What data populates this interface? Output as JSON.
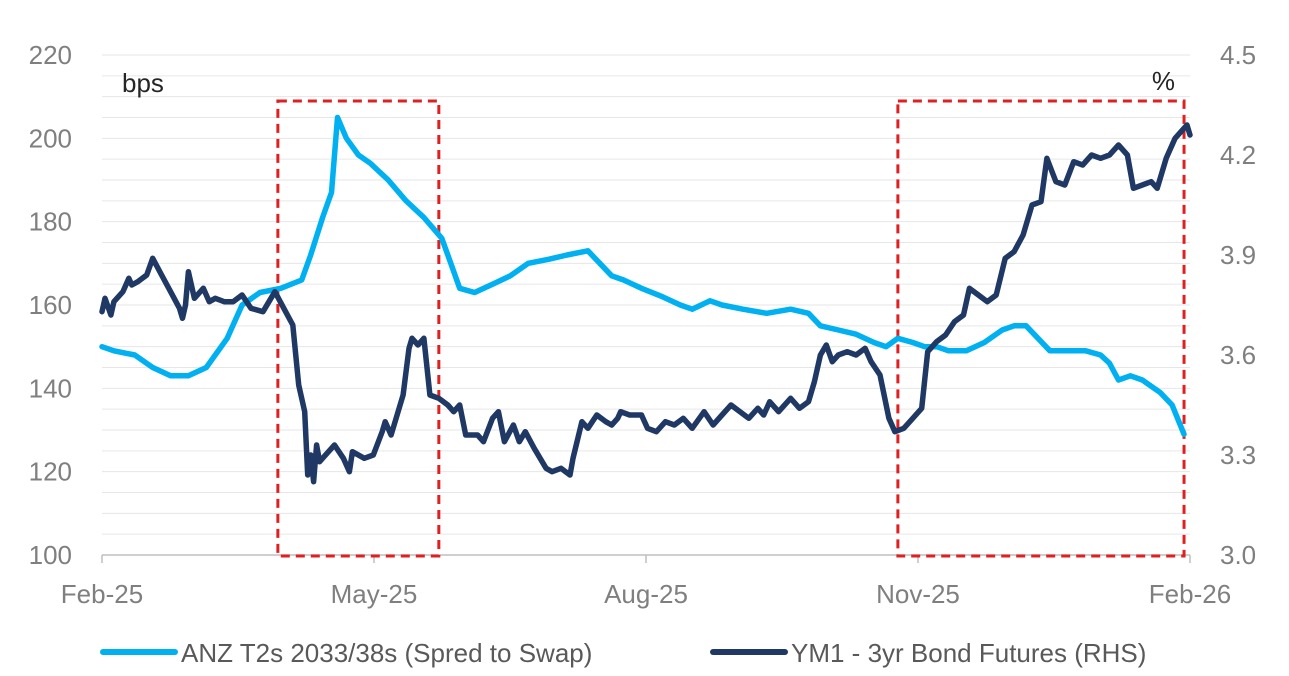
{
  "chart_data": {
    "type": "line",
    "title": "",
    "left_axis": {
      "unit_label": "bps",
      "min": 100,
      "max": 220,
      "ticks": [
        100,
        120,
        140,
        160,
        180,
        200,
        220
      ]
    },
    "right_axis": {
      "unit_label": "%",
      "min": 3.0,
      "max": 4.5,
      "ticks": [
        "3.0",
        "3.3",
        "3.6",
        "3.9",
        "4.2",
        "4.5"
      ]
    },
    "x_axis": {
      "ticks": [
        "Feb-25",
        "May-25",
        "Aug-25",
        "Nov-25",
        "Feb-26"
      ]
    },
    "x_range": [
      "2025-02-01",
      "2026-02-01"
    ],
    "minor_gridlines": true,
    "legend_position": "bottom",
    "colors": {
      "ANZ": "#00b0f0",
      "YM1": "#1f3864",
      "highlight": "#e02020"
    },
    "highlight_boxes": [
      {
        "x_start": "2025-04-01",
        "x_end": "2025-05-25"
      },
      {
        "x_start": "2025-10-26",
        "x_end": "2026-01-30"
      }
    ],
    "series": [
      {
        "name": "ANZ T2s 2033/38s (Spred to Swap)",
        "axis": "left",
        "points": [
          [
            "2025-02-01",
            150
          ],
          [
            "2025-02-05",
            149
          ],
          [
            "2025-02-12",
            148
          ],
          [
            "2025-02-18",
            145
          ],
          [
            "2025-02-24",
            143
          ],
          [
            "2025-03-02",
            143
          ],
          [
            "2025-03-08",
            145
          ],
          [
            "2025-03-15",
            152
          ],
          [
            "2025-03-20",
            160
          ],
          [
            "2025-03-26",
            163
          ],
          [
            "2025-04-02",
            164
          ],
          [
            "2025-04-09",
            166
          ],
          [
            "2025-04-12",
            172
          ],
          [
            "2025-04-16",
            181
          ],
          [
            "2025-04-19",
            187
          ],
          [
            "2025-04-21",
            205
          ],
          [
            "2025-04-24",
            200
          ],
          [
            "2025-04-28",
            196
          ],
          [
            "2025-05-02",
            194
          ],
          [
            "2025-05-08",
            190
          ],
          [
            "2025-05-14",
            185
          ],
          [
            "2025-05-20",
            181
          ],
          [
            "2025-05-26",
            176
          ],
          [
            "2025-05-29",
            170
          ],
          [
            "2025-06-01",
            164
          ],
          [
            "2025-06-06",
            163
          ],
          [
            "2025-06-12",
            165
          ],
          [
            "2025-06-18",
            167
          ],
          [
            "2025-06-24",
            170
          ],
          [
            "2025-07-01",
            171
          ],
          [
            "2025-07-07",
            172
          ],
          [
            "2025-07-14",
            173
          ],
          [
            "2025-07-18",
            170
          ],
          [
            "2025-07-22",
            167
          ],
          [
            "2025-07-26",
            166
          ],
          [
            "2025-08-01",
            164
          ],
          [
            "2025-08-08",
            162
          ],
          [
            "2025-08-14",
            160
          ],
          [
            "2025-08-18",
            159
          ],
          [
            "2025-08-24",
            161
          ],
          [
            "2025-08-28",
            160
          ],
          [
            "2025-09-04",
            159
          ],
          [
            "2025-09-12",
            158
          ],
          [
            "2025-09-20",
            159
          ],
          [
            "2025-09-26",
            158
          ],
          [
            "2025-09-30",
            155
          ],
          [
            "2025-10-06",
            154
          ],
          [
            "2025-10-12",
            153
          ],
          [
            "2025-10-18",
            151
          ],
          [
            "2025-10-22",
            150
          ],
          [
            "2025-10-26",
            152
          ],
          [
            "2025-10-31",
            151
          ],
          [
            "2025-11-04",
            150
          ],
          [
            "2025-11-08",
            150
          ],
          [
            "2025-11-12",
            149
          ],
          [
            "2025-11-18",
            149
          ],
          [
            "2025-11-24",
            151
          ],
          [
            "2025-11-30",
            154
          ],
          [
            "2025-12-04",
            155
          ],
          [
            "2025-12-08",
            155
          ],
          [
            "2025-12-12",
            152
          ],
          [
            "2025-12-16",
            149
          ],
          [
            "2025-12-22",
            149
          ],
          [
            "2025-12-28",
            149
          ],
          [
            "2026-01-02",
            148
          ],
          [
            "2026-01-05",
            146
          ],
          [
            "2026-01-08",
            142
          ],
          [
            "2026-01-12",
            143
          ],
          [
            "2026-01-16",
            142
          ],
          [
            "2026-01-22",
            139
          ],
          [
            "2026-01-26",
            136
          ],
          [
            "2026-01-30",
            129
          ]
        ]
      },
      {
        "name": "YM1 - 3yr Bond Futures (RHS)",
        "axis": "right",
        "points": [
          [
            "2025-02-01",
            3.73
          ],
          [
            "2025-02-02",
            3.77
          ],
          [
            "2025-02-04",
            3.72
          ],
          [
            "2025-02-05",
            3.76
          ],
          [
            "2025-02-08",
            3.79
          ],
          [
            "2025-02-10",
            3.83
          ],
          [
            "2025-02-11",
            3.81
          ],
          [
            "2025-02-13",
            3.82
          ],
          [
            "2025-02-16",
            3.84
          ],
          [
            "2025-02-18",
            3.89
          ],
          [
            "2025-02-21",
            3.84
          ],
          [
            "2025-02-24",
            3.79
          ],
          [
            "2025-02-27",
            3.74
          ],
          [
            "2025-02-28",
            3.71
          ],
          [
            "2025-03-01",
            3.75
          ],
          [
            "2025-03-02",
            3.85
          ],
          [
            "2025-03-04",
            3.77
          ],
          [
            "2025-03-07",
            3.8
          ],
          [
            "2025-03-09",
            3.76
          ],
          [
            "2025-03-11",
            3.77
          ],
          [
            "2025-03-14",
            3.76
          ],
          [
            "2025-03-17",
            3.76
          ],
          [
            "2025-03-20",
            3.78
          ],
          [
            "2025-03-23",
            3.74
          ],
          [
            "2025-03-27",
            3.73
          ],
          [
            "2025-03-31",
            3.79
          ],
          [
            "2025-04-03",
            3.74
          ],
          [
            "2025-04-06",
            3.69
          ],
          [
            "2025-04-08",
            3.51
          ],
          [
            "2025-04-10",
            3.43
          ],
          [
            "2025-04-11",
            3.24
          ],
          [
            "2025-04-12",
            3.3
          ],
          [
            "2025-04-13",
            3.22
          ],
          [
            "2025-04-14",
            3.33
          ],
          [
            "2025-04-15",
            3.28
          ],
          [
            "2025-04-18",
            3.31
          ],
          [
            "2025-04-20",
            3.33
          ],
          [
            "2025-04-23",
            3.29
          ],
          [
            "2025-04-25",
            3.25
          ],
          [
            "2025-04-26",
            3.31
          ],
          [
            "2025-04-30",
            3.29
          ],
          [
            "2025-05-03",
            3.3
          ],
          [
            "2025-05-06",
            3.37
          ],
          [
            "2025-05-07",
            3.4
          ],
          [
            "2025-05-09",
            3.36
          ],
          [
            "2025-05-13",
            3.48
          ],
          [
            "2025-05-15",
            3.62
          ],
          [
            "2025-05-16",
            3.65
          ],
          [
            "2025-05-18",
            3.63
          ],
          [
            "2025-05-20",
            3.65
          ],
          [
            "2025-05-22",
            3.48
          ],
          [
            "2025-05-25",
            3.47
          ],
          [
            "2025-05-28",
            3.45
          ],
          [
            "2025-05-30",
            3.43
          ],
          [
            "2025-06-01",
            3.45
          ],
          [
            "2025-06-03",
            3.36
          ],
          [
            "2025-06-07",
            3.36
          ],
          [
            "2025-06-09",
            3.34
          ],
          [
            "2025-06-12",
            3.41
          ],
          [
            "2025-06-14",
            3.43
          ],
          [
            "2025-06-16",
            3.34
          ],
          [
            "2025-06-19",
            3.39
          ],
          [
            "2025-06-21",
            3.34
          ],
          [
            "2025-06-23",
            3.37
          ],
          [
            "2025-06-26",
            3.32
          ],
          [
            "2025-06-30",
            3.26
          ],
          [
            "2025-07-02",
            3.25
          ],
          [
            "2025-07-05",
            3.26
          ],
          [
            "2025-07-08",
            3.24
          ],
          [
            "2025-07-09",
            3.29
          ],
          [
            "2025-07-12",
            3.4
          ],
          [
            "2025-07-14",
            3.38
          ],
          [
            "2025-07-17",
            3.42
          ],
          [
            "2025-07-20",
            3.4
          ],
          [
            "2025-07-22",
            3.39
          ],
          [
            "2025-07-24",
            3.41
          ],
          [
            "2025-07-25",
            3.43
          ],
          [
            "2025-07-28",
            3.42
          ],
          [
            "2025-08-01",
            3.42
          ],
          [
            "2025-08-03",
            3.38
          ],
          [
            "2025-08-06",
            3.37
          ],
          [
            "2025-08-09",
            3.4
          ],
          [
            "2025-08-12",
            3.39
          ],
          [
            "2025-08-15",
            3.41
          ],
          [
            "2025-08-18",
            3.38
          ],
          [
            "2025-08-22",
            3.43
          ],
          [
            "2025-08-25",
            3.39
          ],
          [
            "2025-08-28",
            3.42
          ],
          [
            "2025-08-31",
            3.45
          ],
          [
            "2025-09-03",
            3.43
          ],
          [
            "2025-09-06",
            3.41
          ],
          [
            "2025-09-09",
            3.44
          ],
          [
            "2025-09-11",
            3.42
          ],
          [
            "2025-09-13",
            3.46
          ],
          [
            "2025-09-16",
            3.43
          ],
          [
            "2025-09-20",
            3.47
          ],
          [
            "2025-09-23",
            3.44
          ],
          [
            "2025-09-26",
            3.46
          ],
          [
            "2025-09-28",
            3.52
          ],
          [
            "2025-09-30",
            3.6
          ],
          [
            "2025-10-02",
            3.63
          ],
          [
            "2025-10-04",
            3.58
          ],
          [
            "2025-10-06",
            3.6
          ],
          [
            "2025-10-09",
            3.61
          ],
          [
            "2025-10-12",
            3.6
          ],
          [
            "2025-10-15",
            3.62
          ],
          [
            "2025-10-17",
            3.58
          ],
          [
            "2025-10-20",
            3.54
          ],
          [
            "2025-10-23",
            3.41
          ],
          [
            "2025-10-25",
            3.37
          ],
          [
            "2025-10-28",
            3.38
          ],
          [
            "2025-10-31",
            3.41
          ],
          [
            "2025-11-03",
            3.44
          ],
          [
            "2025-11-05",
            3.61
          ],
          [
            "2025-11-08",
            3.64
          ],
          [
            "2025-11-11",
            3.66
          ],
          [
            "2025-11-14",
            3.7
          ],
          [
            "2025-11-17",
            3.72
          ],
          [
            "2025-11-19",
            3.8
          ],
          [
            "2025-11-22",
            3.78
          ],
          [
            "2025-11-25",
            3.76
          ],
          [
            "2025-11-28",
            3.78
          ],
          [
            "2025-12-01",
            3.89
          ],
          [
            "2025-12-04",
            3.91
          ],
          [
            "2025-12-07",
            3.96
          ],
          [
            "2025-12-10",
            4.05
          ],
          [
            "2025-12-13",
            4.06
          ],
          [
            "2025-12-15",
            4.19
          ],
          [
            "2025-12-18",
            4.12
          ],
          [
            "2025-12-21",
            4.11
          ],
          [
            "2025-12-24",
            4.18
          ],
          [
            "2025-12-27",
            4.17
          ],
          [
            "2025-12-30",
            4.2
          ],
          [
            "2026-01-02",
            4.19
          ],
          [
            "2026-01-05",
            4.2
          ],
          [
            "2026-01-08",
            4.23
          ],
          [
            "2026-01-11",
            4.2
          ],
          [
            "2026-01-13",
            4.1
          ],
          [
            "2026-01-16",
            4.11
          ],
          [
            "2026-01-19",
            4.12
          ],
          [
            "2026-01-21",
            4.1
          ],
          [
            "2026-01-24",
            4.19
          ],
          [
            "2026-01-27",
            4.25
          ],
          [
            "2026-01-30",
            4.28
          ],
          [
            "2026-01-31",
            4.29
          ],
          [
            "2026-02-01",
            4.26
          ]
        ]
      }
    ]
  }
}
